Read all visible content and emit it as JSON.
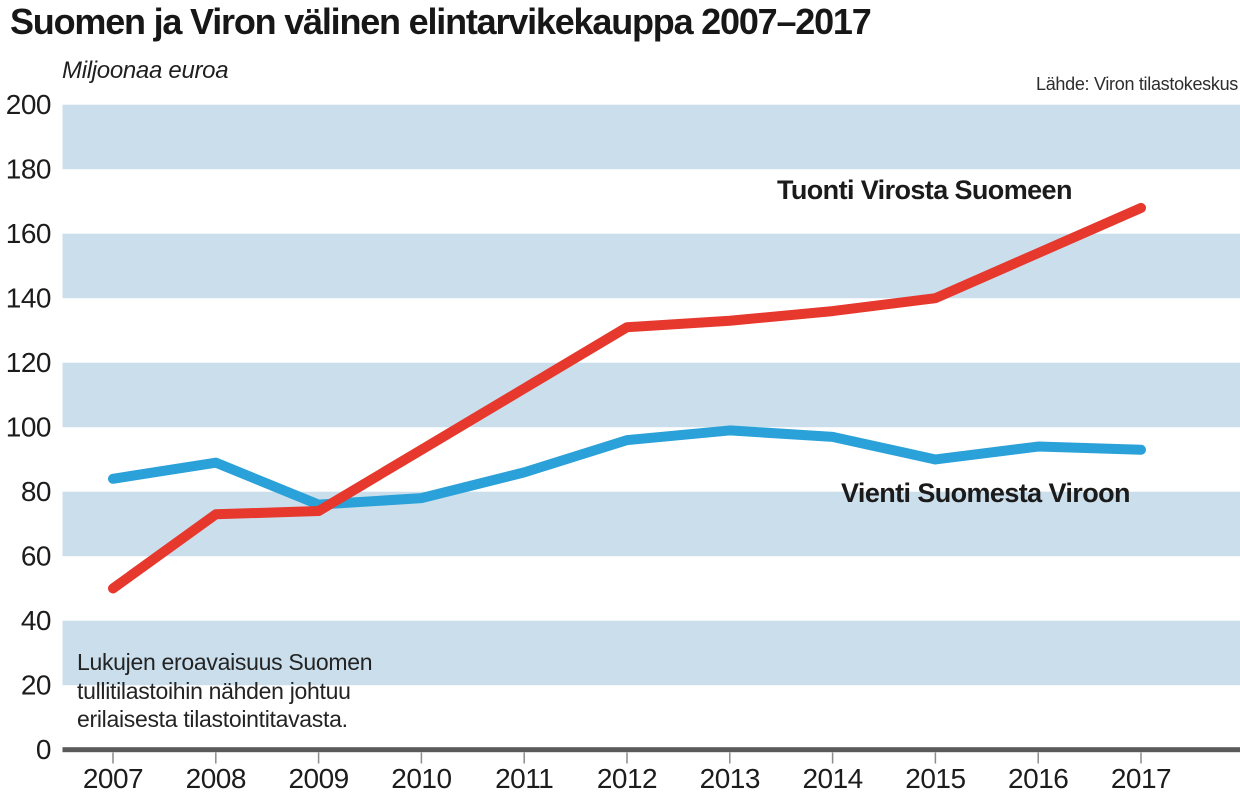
{
  "header": {
    "title": "Suomen ja Viron välinen elintarvikekauppa 2007–2017",
    "unit_label": "Miljoonaa euroa",
    "source": "Lähde: Viron tilastokeskus"
  },
  "annotation": "Lukujen eroavaisuus Suomen\ntullitilastoihin nähden johtuu\nerilaisesta tilastointitavasta.",
  "chart_data": {
    "type": "line",
    "title": "Suomen ja Viron välinen elintarvikekauppa 2007–2017",
    "ylabel": "Miljoonaa euroa",
    "xlabel": "",
    "ylim": [
      0,
      200
    ],
    "ytick_step": 20,
    "yticks": [
      "0",
      "20",
      "40",
      "60",
      "80",
      "100",
      "120",
      "140",
      "160",
      "180",
      "200"
    ],
    "categories": [
      "2007",
      "2008",
      "2009",
      "2010",
      "2011",
      "2012",
      "2013",
      "2014",
      "2015",
      "2016",
      "2017"
    ],
    "series": [
      {
        "name": "Tuonti Virosta Suomeen",
        "color": "#e6382d",
        "values": [
          50,
          73,
          74,
          93,
          112,
          131,
          133,
          136,
          140,
          154,
          168
        ]
      },
      {
        "name": "Vienti Suomesta Viroon",
        "color": "#2aa1d8",
        "values": [
          84,
          89,
          76,
          78,
          86,
          96,
          99,
          97,
          90,
          94,
          93
        ]
      }
    ],
    "grid": "striped-horizontal-bands",
    "band_color": "#cbdeec",
    "axis_color": "#5a5a5a",
    "tick_color": "#8c8c8c",
    "text_color": "#1c1c1c",
    "legend_position": "inline-labels",
    "source": "Lähde: Viron tilastokeskus"
  }
}
